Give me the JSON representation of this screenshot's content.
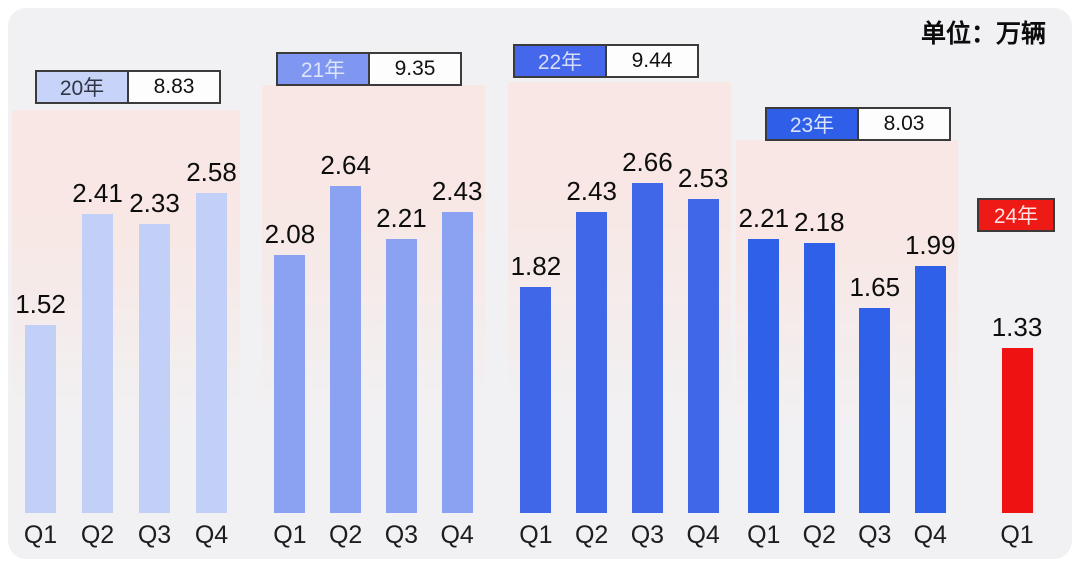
{
  "unit_label": "单位：万辆",
  "chart_data": {
    "type": "bar",
    "title": "",
    "unit": "万辆",
    "categories": [
      "Q1",
      "Q2",
      "Q3",
      "Q4"
    ],
    "ylim": [
      0,
      2.8
    ],
    "value_labels_shown": true,
    "legend_position": "above-each-group",
    "grid": false,
    "panel_tint": "#f8e7e4",
    "accent_red": "#ee1212",
    "series": [
      {
        "name": "20年",
        "total": "8.83",
        "values": [
          1.52,
          2.41,
          2.33,
          2.58
        ],
        "labels": [
          "1.52",
          "2.41",
          "2.33",
          "2.58"
        ],
        "bar_color": "#c2cff7",
        "badge_bg": "#c7d3f8",
        "badge_text": "#2f3542"
      },
      {
        "name": "21年",
        "total": "9.35",
        "values": [
          2.08,
          2.64,
          2.21,
          2.43
        ],
        "labels": [
          "2.08",
          "2.64",
          "2.21",
          "2.43"
        ],
        "bar_color": "#8ba1f2",
        "badge_bg": "#8097f2",
        "badge_text": "#dde4fc"
      },
      {
        "name": "22年",
        "total": "9.44",
        "values": [
          1.82,
          2.43,
          2.66,
          2.53
        ],
        "labels": [
          "1.82",
          "2.43",
          "2.66",
          "2.53"
        ],
        "bar_color": "#4067e8",
        "badge_bg": "#4467ec",
        "badge_text": "#d6defb"
      },
      {
        "name": "23年",
        "total": "8.03",
        "values": [
          2.21,
          2.18,
          1.65,
          1.99
        ],
        "labels": [
          "2.21",
          "2.18",
          "1.65",
          "1.99"
        ],
        "bar_color": "#2e60e8",
        "badge_bg": "#2f5fe9",
        "badge_text": "#dbe3fb"
      },
      {
        "name": "24年",
        "total": "",
        "values": [
          1.33
        ],
        "labels": [
          "1.33"
        ],
        "bar_color": "#ee1212",
        "badge_bg": "#ee1a15",
        "badge_text": "#ffe3e3"
      }
    ]
  }
}
